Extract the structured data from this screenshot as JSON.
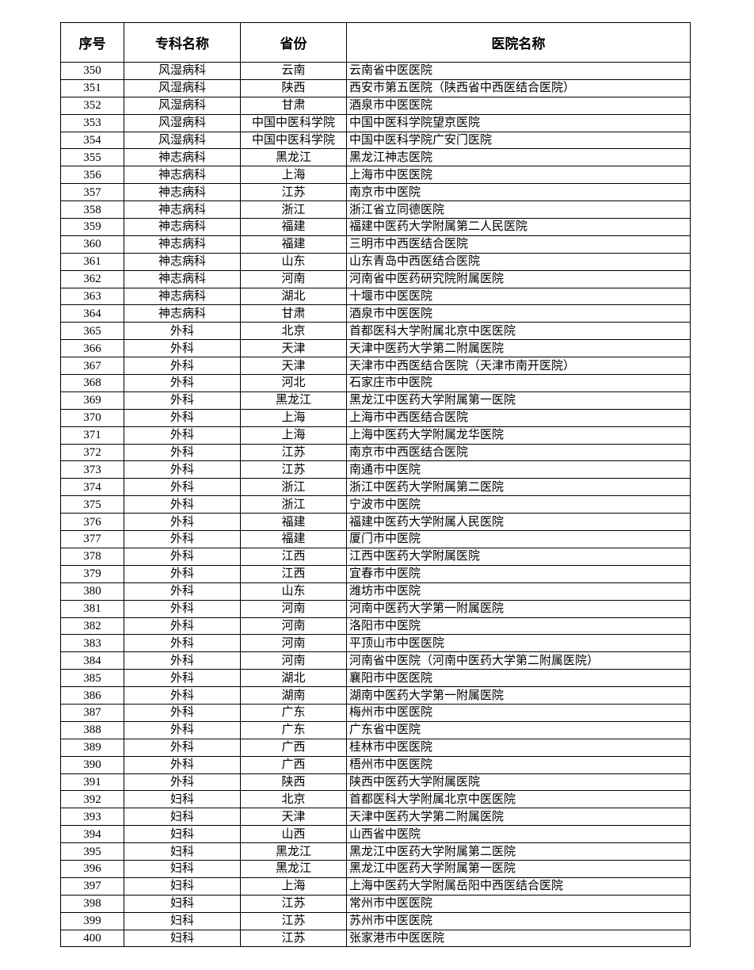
{
  "table": {
    "headers": [
      "序号",
      "专科名称",
      "省份",
      "医院名称"
    ],
    "rows": [
      [
        "350",
        "风湿病科",
        "云南",
        "云南省中医医院"
      ],
      [
        "351",
        "风湿病科",
        "陕西",
        "西安市第五医院（陕西省中西医结合医院）"
      ],
      [
        "352",
        "风湿病科",
        "甘肃",
        "酒泉市中医医院"
      ],
      [
        "353",
        "风湿病科",
        "中国中医科学院",
        "中国中医科学院望京医院"
      ],
      [
        "354",
        "风湿病科",
        "中国中医科学院",
        "中国中医科学院广安门医院"
      ],
      [
        "355",
        "神志病科",
        "黑龙江",
        "黑龙江神志医院"
      ],
      [
        "356",
        "神志病科",
        "上海",
        "上海市中医医院"
      ],
      [
        "357",
        "神志病科",
        "江苏",
        "南京市中医院"
      ],
      [
        "358",
        "神志病科",
        "浙江",
        "浙江省立同德医院"
      ],
      [
        "359",
        "神志病科",
        "福建",
        "福建中医药大学附属第二人民医院"
      ],
      [
        "360",
        "神志病科",
        "福建",
        "三明市中西医结合医院"
      ],
      [
        "361",
        "神志病科",
        "山东",
        "山东青岛中西医结合医院"
      ],
      [
        "362",
        "神志病科",
        "河南",
        "河南省中医药研究院附属医院"
      ],
      [
        "363",
        "神志病科",
        "湖北",
        "十堰市中医医院"
      ],
      [
        "364",
        "神志病科",
        "甘肃",
        "酒泉市中医医院"
      ],
      [
        "365",
        "外科",
        "北京",
        "首都医科大学附属北京中医医院"
      ],
      [
        "366",
        "外科",
        "天津",
        "天津中医药大学第二附属医院"
      ],
      [
        "367",
        "外科",
        "天津",
        "天津市中西医结合医院（天津市南开医院）"
      ],
      [
        "368",
        "外科",
        "河北",
        "石家庄市中医院"
      ],
      [
        "369",
        "外科",
        "黑龙江",
        "黑龙江中医药大学附属第一医院"
      ],
      [
        "370",
        "外科",
        "上海",
        "上海市中西医结合医院"
      ],
      [
        "371",
        "外科",
        "上海",
        "上海中医药大学附属龙华医院"
      ],
      [
        "372",
        "外科",
        "江苏",
        "南京市中西医结合医院"
      ],
      [
        "373",
        "外科",
        "江苏",
        "南通市中医院"
      ],
      [
        "374",
        "外科",
        "浙江",
        "浙江中医药大学附属第二医院"
      ],
      [
        "375",
        "外科",
        "浙江",
        "宁波市中医院"
      ],
      [
        "376",
        "外科",
        "福建",
        "福建中医药大学附属人民医院"
      ],
      [
        "377",
        "外科",
        "福建",
        "厦门市中医院"
      ],
      [
        "378",
        "外科",
        "江西",
        "江西中医药大学附属医院"
      ],
      [
        "379",
        "外科",
        "江西",
        "宜春市中医院"
      ],
      [
        "380",
        "外科",
        "山东",
        "潍坊市中医院"
      ],
      [
        "381",
        "外科",
        "河南",
        "河南中医药大学第一附属医院"
      ],
      [
        "382",
        "外科",
        "河南",
        "洛阳市中医院"
      ],
      [
        "383",
        "外科",
        "河南",
        "平顶山市中医医院"
      ],
      [
        "384",
        "外科",
        "河南",
        "河南省中医院（河南中医药大学第二附属医院）"
      ],
      [
        "385",
        "外科",
        "湖北",
        "襄阳市中医医院"
      ],
      [
        "386",
        "外科",
        "湖南",
        "湖南中医药大学第一附属医院"
      ],
      [
        "387",
        "外科",
        "广东",
        "梅州市中医医院"
      ],
      [
        "388",
        "外科",
        "广东",
        "广东省中医院"
      ],
      [
        "389",
        "外科",
        "广西",
        "桂林市中医医院"
      ],
      [
        "390",
        "外科",
        "广西",
        "梧州市中医医院"
      ],
      [
        "391",
        "外科",
        "陕西",
        "陕西中医药大学附属医院"
      ],
      [
        "392",
        "妇科",
        "北京",
        "首都医科大学附属北京中医医院"
      ],
      [
        "393",
        "妇科",
        "天津",
        "天津中医药大学第二附属医院"
      ],
      [
        "394",
        "妇科",
        "山西",
        "山西省中医院"
      ],
      [
        "395",
        "妇科",
        "黑龙江",
        "黑龙江中医药大学附属第二医院"
      ],
      [
        "396",
        "妇科",
        "黑龙江",
        "黑龙江中医药大学附属第一医院"
      ],
      [
        "397",
        "妇科",
        "上海",
        "上海中医药大学附属岳阳中西医结合医院"
      ],
      [
        "398",
        "妇科",
        "江苏",
        "常州市中医医院"
      ],
      [
        "399",
        "妇科",
        "江苏",
        "苏州市中医医院"
      ],
      [
        "400",
        "妇科",
        "江苏",
        "张家港市中医医院"
      ]
    ]
  }
}
